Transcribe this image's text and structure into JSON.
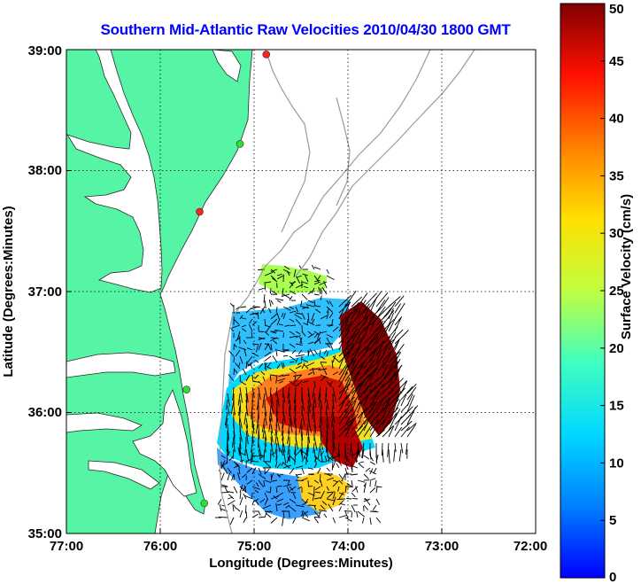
{
  "title": "Southern Mid-Atlantic Raw Velocities 2010/04/30 1800 GMT",
  "map": {
    "xlabel": "Longitude (Degrees:Minutes)",
    "ylabel": "Latitude (Degrees:Minutes)",
    "lon_range": [
      -77,
      -72
    ],
    "lat_range": [
      35,
      39
    ],
    "x_ticks": [
      "77:00",
      "76:00",
      "75:00",
      "74:00",
      "73:00",
      "72:00"
    ],
    "y_ticks": [
      "35:00",
      "36:00",
      "37:00",
      "38:00",
      "39:00"
    ],
    "grid": "dotted",
    "colors": {
      "land": "#55f5a5",
      "bathymetry_contour": "#9a9a9a",
      "frame": "#000000"
    },
    "stations": [
      {
        "lon": -74.87,
        "lat": 38.96,
        "color": "#ff2020"
      },
      {
        "lon": -75.15,
        "lat": 38.22,
        "color": "#30e030"
      },
      {
        "lon": -75.58,
        "lat": 37.66,
        "color": "#ff2020"
      },
      {
        "lon": -75.72,
        "lat": 36.19,
        "color": "#30e030"
      },
      {
        "lon": -75.53,
        "lat": 35.25,
        "color": "#30e030"
      }
    ]
  },
  "colorbar": {
    "label": "Surface Velocity (cm/s)",
    "range": [
      0,
      50
    ],
    "ticks": [
      "0",
      "5",
      "10",
      "15",
      "20",
      "25",
      "30",
      "35",
      "40",
      "45",
      "50"
    ],
    "colormap": "jet"
  }
}
